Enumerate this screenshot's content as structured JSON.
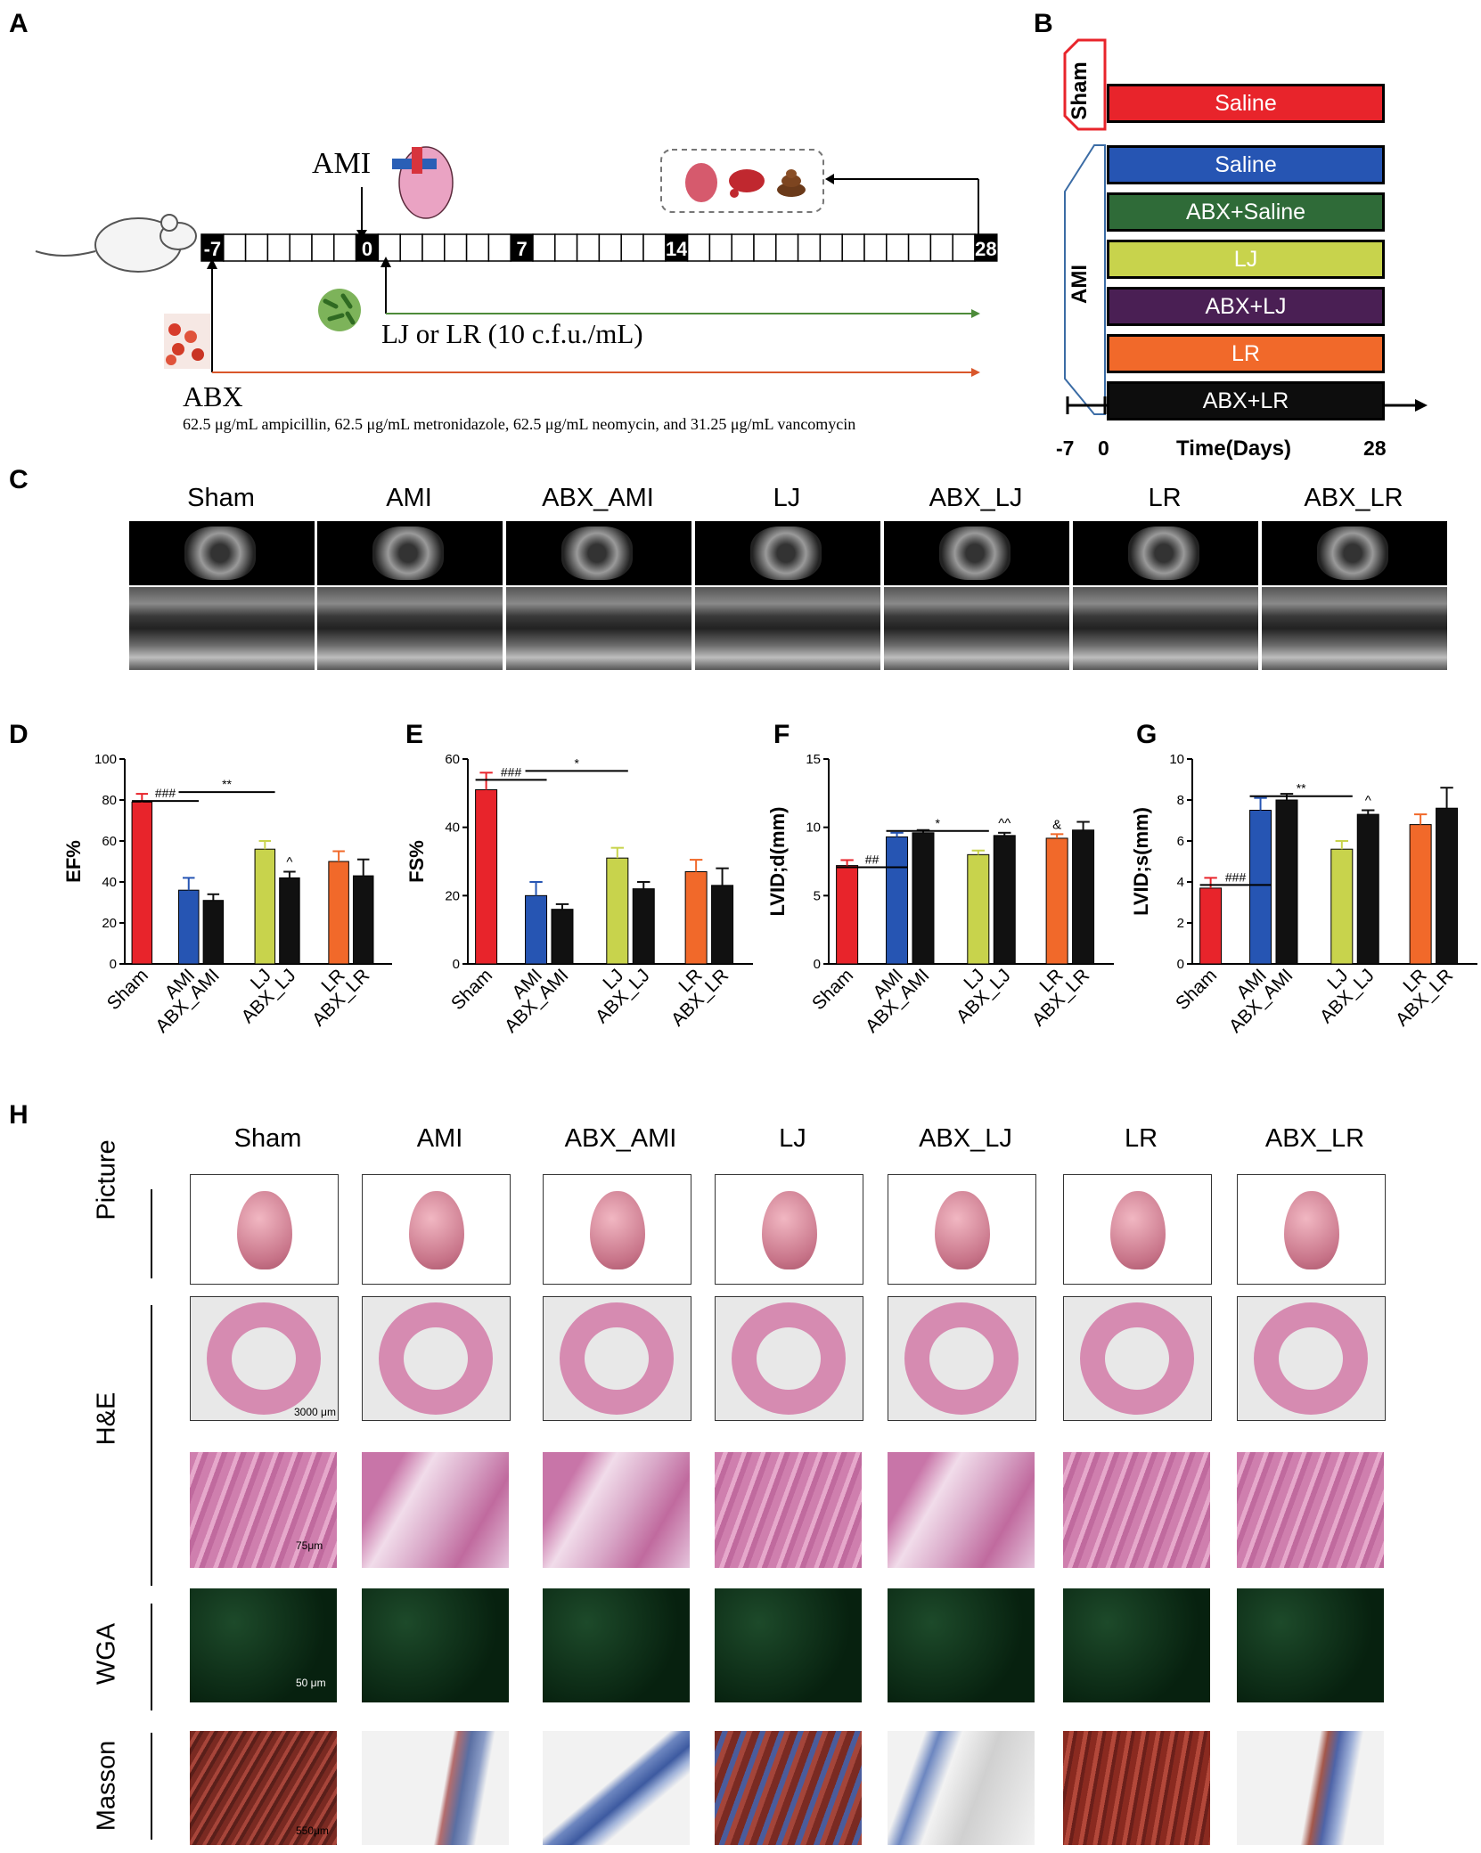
{
  "panels": {
    "A": "A",
    "B": "B",
    "C": "C",
    "D": "D",
    "E": "E",
    "F": "F",
    "G": "G",
    "H": "H"
  },
  "panel_a": {
    "ami_label": "AMI",
    "timeline_ticks": [
      "-7",
      "0",
      "7",
      "14",
      "28"
    ],
    "treatment_label": "LJ or LR (10  c.f.u./mL)",
    "abx_label": "ABX",
    "abx_detail": "62.5 μg/mL ampicillin, 62.5 μg/mL metronidazole, 62.5 μg/mL neomycin, and 31.25 μg/mL vancomycin"
  },
  "panel_b": {
    "sham_label": "Sham",
    "ami_label": "AMI",
    "bars": [
      {
        "label": "Saline",
        "color": "#e8242b"
      },
      {
        "label": "Saline",
        "color": "#2655b3"
      },
      {
        "label": "ABX+Saline",
        "color": "#2f6b38"
      },
      {
        "label": "LJ",
        "color": "#c8d34c"
      },
      {
        "label": "ABX+LJ",
        "color": "#4a1f54"
      },
      {
        "label": "LR",
        "color": "#f1692a"
      },
      {
        "label": "ABX+LR",
        "color": "#0d0d0d"
      }
    ],
    "axis_ticks": [
      "-7",
      "0",
      "28"
    ],
    "axis_label": "Time(Days)"
  },
  "panel_c": {
    "groups": [
      "Sham",
      "AMI",
      "ABX_AMI",
      "LJ",
      "ABX_LJ",
      "LR",
      "ABX_LR"
    ]
  },
  "chart_data": [
    {
      "panel": "D",
      "type": "bar",
      "ylabel": "EF%",
      "ylim": [
        0,
        100
      ],
      "yticks": [
        0,
        20,
        40,
        60,
        80,
        100
      ],
      "categories": [
        "Sham",
        "AMI",
        "ABX_AMI",
        "LJ",
        "ABX_LJ",
        "LR",
        "ABX_LR"
      ],
      "values": [
        79,
        36,
        31,
        56,
        42,
        50,
        43
      ],
      "errors": [
        4,
        6,
        3,
        4,
        3,
        5,
        8
      ],
      "colors": [
        "#e8242b",
        "#2655b3",
        "#111111",
        "#c8d34c",
        "#111111",
        "#f1692a",
        "#111111"
      ],
      "annotations": [
        {
          "text": "###",
          "from": 0,
          "to": 1
        },
        {
          "text": "**",
          "from": 1,
          "to": 3
        },
        {
          "text": "^",
          "bar": 4
        }
      ]
    },
    {
      "panel": "E",
      "type": "bar",
      "ylabel": "FS%",
      "ylim": [
        0,
        60
      ],
      "yticks": [
        0,
        20,
        40,
        60
      ],
      "categories": [
        "Sham",
        "AMI",
        "ABX_AMI",
        "LJ",
        "ABX_LJ",
        "LR",
        "ABX_LR"
      ],
      "values": [
        51,
        20,
        16,
        31,
        22,
        27,
        23
      ],
      "errors": [
        5,
        4,
        1.5,
        3,
        2,
        3.5,
        5
      ],
      "colors": [
        "#e8242b",
        "#2655b3",
        "#111111",
        "#c8d34c",
        "#111111",
        "#f1692a",
        "#111111"
      ],
      "annotations": [
        {
          "text": "###",
          "from": 0,
          "to": 1
        },
        {
          "text": "*",
          "from": 1,
          "to": 3
        }
      ]
    },
    {
      "panel": "F",
      "type": "bar",
      "ylabel": "LVID;d(mm)",
      "ylim": [
        0,
        15
      ],
      "yticks": [
        0,
        5,
        10,
        15
      ],
      "categories": [
        "Sham",
        "AMI",
        "ABX_AMI",
        "LJ",
        "ABX_LJ",
        "LR",
        "ABX_LR"
      ],
      "values": [
        7.2,
        9.3,
        9.6,
        8.0,
        9.4,
        9.2,
        9.8
      ],
      "errors": [
        0.4,
        0.3,
        0.2,
        0.3,
        0.2,
        0.3,
        0.6
      ],
      "colors": [
        "#e8242b",
        "#2655b3",
        "#111111",
        "#c8d34c",
        "#111111",
        "#f1692a",
        "#111111"
      ],
      "annotations": [
        {
          "text": "##",
          "from": 0,
          "to": 1
        },
        {
          "text": "*",
          "from": 1,
          "to": 3
        },
        {
          "text": "^^",
          "bar": 4
        },
        {
          "text": "&",
          "bar": 5
        }
      ]
    },
    {
      "panel": "G",
      "type": "bar",
      "ylabel": "LVID;s(mm)",
      "ylim": [
        0,
        10
      ],
      "yticks": [
        0,
        2,
        4,
        6,
        8,
        10
      ],
      "categories": [
        "Sham",
        "AMI",
        "ABX_AMI",
        "LJ",
        "ABX_LJ",
        "LR",
        "ABX_LR"
      ],
      "values": [
        3.7,
        7.5,
        8.0,
        5.6,
        7.3,
        6.8,
        7.6
      ],
      "errors": [
        0.5,
        0.6,
        0.3,
        0.4,
        0.2,
        0.5,
        1.0
      ],
      "colors": [
        "#e8242b",
        "#2655b3",
        "#111111",
        "#c8d34c",
        "#111111",
        "#f1692a",
        "#111111"
      ],
      "annotations": [
        {
          "text": "###",
          "from": 0,
          "to": 1
        },
        {
          "text": "**",
          "from": 1,
          "to": 3
        },
        {
          "text": "^",
          "bar": 4
        }
      ]
    }
  ],
  "panel_h": {
    "groups": [
      "Sham",
      "AMI",
      "ABX_AMI",
      "LJ",
      "ABX_LJ",
      "LR",
      "ABX_LR"
    ],
    "rows": [
      "Picture",
      "H&E",
      "WGA",
      "Masson"
    ],
    "scale_bars": {
      "he_whole": "3000 μm",
      "he_zoom": "75μm",
      "wga": "50 μm",
      "masson": "550μm"
    }
  }
}
